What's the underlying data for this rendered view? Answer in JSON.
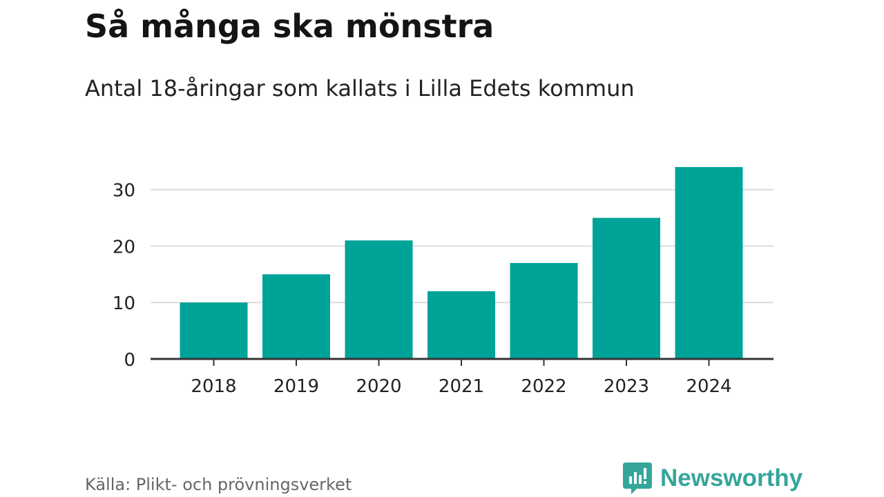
{
  "header": {
    "title": "Så många ska mönstra",
    "subtitle": "Antal 18-åringar som kallats i Lilla Edets kommun"
  },
  "footer": {
    "source": "Källa: Plikt- och prövningsverket",
    "brand": "Newsworthy",
    "brand_icon": "bar-chart-speech-bubble-icon"
  },
  "colors": {
    "bar": "#00a398",
    "grid": "#dcdcdc",
    "axis": "#333333",
    "brand": "#35a59a",
    "text": "#222222"
  },
  "chart_data": {
    "type": "bar",
    "categories": [
      "2018",
      "2019",
      "2020",
      "2021",
      "2022",
      "2023",
      "2024"
    ],
    "values": [
      10,
      15,
      21,
      12,
      17,
      25,
      34
    ],
    "yticks": [
      0,
      10,
      20,
      30
    ],
    "ylim": [
      0,
      34
    ],
    "grid": true,
    "legend": "none"
  }
}
